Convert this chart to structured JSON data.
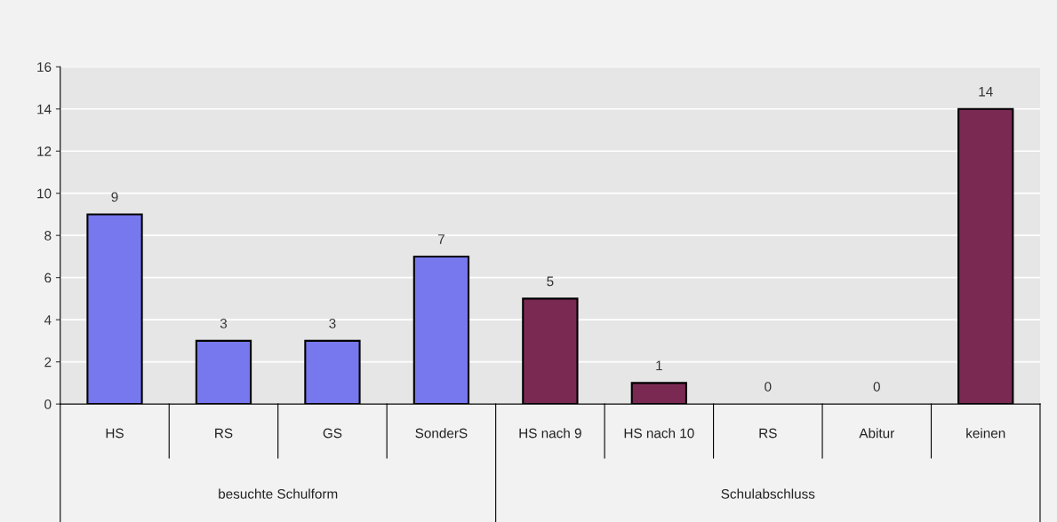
{
  "chart_data": {
    "type": "bar",
    "categories": [
      "HS",
      "RS",
      "GS",
      "SonderS",
      "HS nach 9",
      "HS nach 10",
      "RS",
      "Abitur",
      "keinen"
    ],
    "values": [
      9,
      3,
      3,
      7,
      5,
      1,
      0,
      0,
      14
    ],
    "colors": [
      "#7777ee",
      "#7777ee",
      "#7777ee",
      "#7777ee",
      "#7a2a52",
      "#7a2a52",
      "#7a2a52",
      "#7a2a52",
      "#7a2a52"
    ],
    "annotations": [
      "besuchte Schulform",
      "Schulabschluss"
    ],
    "ylim": [
      0,
      16
    ],
    "yticks": [
      0,
      2,
      4,
      6,
      8,
      10,
      12,
      14,
      16
    ],
    "grid": "y",
    "data_labels": true
  }
}
